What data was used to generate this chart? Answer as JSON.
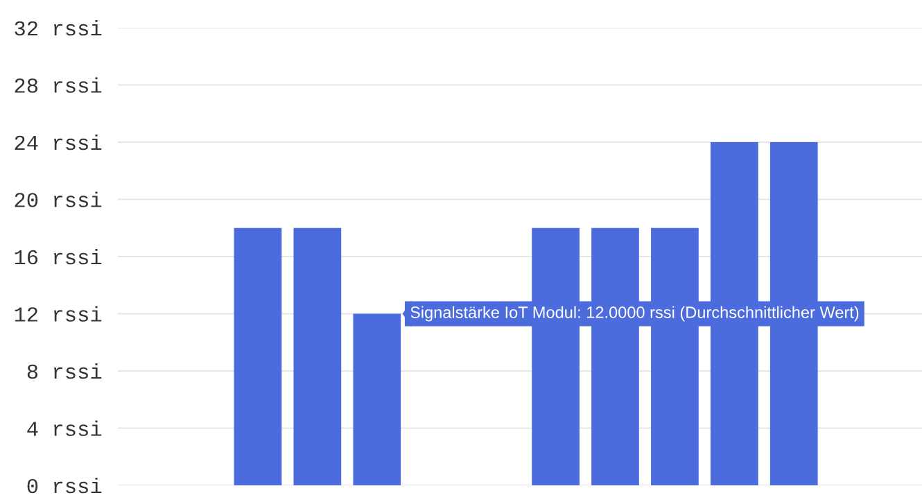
{
  "chart_data": {
    "type": "bar",
    "categories": [
      null,
      null,
      null,
      null,
      null,
      null,
      null,
      null,
      null,
      null,
      null,
      null,
      null,
      null
    ],
    "series": [
      {
        "color": "#4c6cde",
        "values": [
          0,
          0,
          18,
          18,
          12,
          0,
          0,
          18,
          18,
          18,
          24,
          24,
          0,
          0
        ]
      }
    ],
    "ylim": [
      0,
      32
    ],
    "yticks": [
      {
        "value": 0,
        "label": "0 rssi"
      },
      {
        "value": 4,
        "label": "4 rssi"
      },
      {
        "value": 8,
        "label": "8 rssi"
      },
      {
        "value": 12,
        "label": "12 rssi"
      },
      {
        "value": 16,
        "label": "16 rssi"
      },
      {
        "value": 20,
        "label": "20 rssi"
      },
      {
        "value": 24,
        "label": "24 rssi"
      },
      {
        "value": 28,
        "label": "28 rssi"
      },
      {
        "value": 32,
        "label": "32 rssi"
      }
    ],
    "grid": "y",
    "tick_labels": "y",
    "legend": false,
    "annotations": [
      "Signalstärke IoT Modul: 12.0000 rssi (Durchschnittlicher Wert)"
    ]
  }
}
